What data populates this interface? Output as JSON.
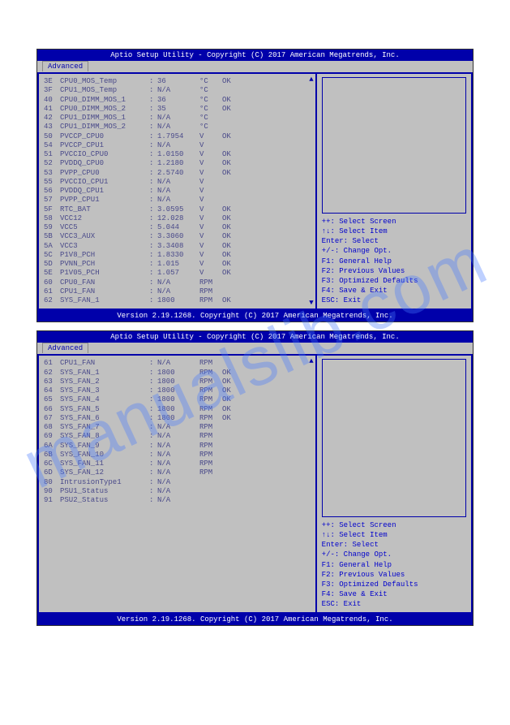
{
  "watermark": "manualslib.com",
  "title_bar": "Aptio Setup Utility - Copyright (C) 2017 American Megatrends, Inc.",
  "tab_label": "Advanced",
  "footer_bar": "Version 2.19.1268. Copyright (C) 2017 American Megatrends, Inc.",
  "help": {
    "l1": "++: Select Screen",
    "l2": "↑↓: Select Item",
    "l3": "Enter: Select",
    "l4": "+/-: Change Opt.",
    "l5": "F1: General Help",
    "l6": "F2: Previous Values",
    "l7": "F3: Optimized Defaults",
    "l8": "F4: Save & Exit",
    "l9": "ESC: Exit"
  },
  "panel1_rows": [
    {
      "id": "3E",
      "name": "CPU0_MOS_Temp",
      "val": "36",
      "unit": "°C",
      "stat": "OK"
    },
    {
      "id": "3F",
      "name": "CPU1_MOS_Temp",
      "val": "N/A",
      "unit": "°C",
      "stat": ""
    },
    {
      "id": "40",
      "name": "CPU0_DIMM_MOS_1",
      "val": "36",
      "unit": "°C",
      "stat": "OK"
    },
    {
      "id": "41",
      "name": "CPU0_DIMM_MOS_2",
      "val": "35",
      "unit": "°C",
      "stat": "OK"
    },
    {
      "id": "42",
      "name": "CPU1_DIMM_MOS_1",
      "val": "N/A",
      "unit": "°C",
      "stat": ""
    },
    {
      "id": "43",
      "name": "CPU1_DIMM_MOS_2",
      "val": "N/A",
      "unit": "°C",
      "stat": ""
    },
    {
      "id": "50",
      "name": "PVCCP_CPU0",
      "val": "1.7954",
      "unit": "V",
      "stat": "OK"
    },
    {
      "id": "54",
      "name": "PVCCP_CPU1",
      "val": "N/A",
      "unit": "V",
      "stat": ""
    },
    {
      "id": "51",
      "name": "PVCCIO_CPU0",
      "val": "1.0150",
      "unit": "V",
      "stat": "OK"
    },
    {
      "id": "52",
      "name": "PVDDQ_CPU0",
      "val": "1.2180",
      "unit": "V",
      "stat": "OK"
    },
    {
      "id": "53",
      "name": "PVPP_CPU0",
      "val": "2.5740",
      "unit": "V",
      "stat": "OK"
    },
    {
      "id": "55",
      "name": "PVCCIO_CPU1",
      "val": "N/A",
      "unit": "V",
      "stat": ""
    },
    {
      "id": "56",
      "name": "PVDDQ_CPU1",
      "val": "N/A",
      "unit": "V",
      "stat": ""
    },
    {
      "id": "57",
      "name": "PVPP_CPU1",
      "val": "N/A",
      "unit": "V",
      "stat": ""
    },
    {
      "id": "5F",
      "name": "RTC_BAT",
      "val": "3.0595",
      "unit": "V",
      "stat": "OK"
    },
    {
      "id": "58",
      "name": "VCC12",
      "val": "12.028",
      "unit": "V",
      "stat": "OK"
    },
    {
      "id": "59",
      "name": "VCC5",
      "val": "5.044",
      "unit": "V",
      "stat": "OK"
    },
    {
      "id": "5B",
      "name": "VCC3_AUX",
      "val": "3.3060",
      "unit": "V",
      "stat": "OK"
    },
    {
      "id": "5A",
      "name": "VCC3",
      "val": "3.3408",
      "unit": "V",
      "stat": "OK"
    },
    {
      "id": "5C",
      "name": "P1V8_PCH",
      "val": "1.8330",
      "unit": "V",
      "stat": "OK"
    },
    {
      "id": "5D",
      "name": "PVNN_PCH",
      "val": "1.015",
      "unit": "V",
      "stat": "OK"
    },
    {
      "id": "5E",
      "name": "P1V05_PCH",
      "val": "1.057",
      "unit": "V",
      "stat": "OK"
    },
    {
      "id": "60",
      "name": "CPU0_FAN",
      "val": "N/A",
      "unit": "RPM",
      "stat": ""
    },
    {
      "id": "61",
      "name": "CPU1_FAN",
      "val": "N/A",
      "unit": "RPM",
      "stat": ""
    },
    {
      "id": "62",
      "name": "SYS_FAN_1",
      "val": "1800",
      "unit": "RPM",
      "stat": "OK"
    }
  ],
  "panel2_rows": [
    {
      "id": "61",
      "name": "CPU1_FAN",
      "val": "N/A",
      "unit": "RPM",
      "stat": ""
    },
    {
      "id": "62",
      "name": "SYS_FAN_1",
      "val": "1800",
      "unit": "RPM",
      "stat": "OK"
    },
    {
      "id": "63",
      "name": "SYS_FAN_2",
      "val": "1800",
      "unit": "RPM",
      "stat": "OK"
    },
    {
      "id": "64",
      "name": "SYS_FAN_3",
      "val": "1800",
      "unit": "RPM",
      "stat": "OK"
    },
    {
      "id": "65",
      "name": "SYS_FAN_4",
      "val": "1800",
      "unit": "RPM",
      "stat": "OK"
    },
    {
      "id": "66",
      "name": "SYS_FAN_5",
      "val": "1800",
      "unit": "RPM",
      "stat": "OK"
    },
    {
      "id": "67",
      "name": "SYS_FAN_6",
      "val": "1800",
      "unit": "RPM",
      "stat": "OK"
    },
    {
      "id": "68",
      "name": "SYS_FAN_7",
      "val": "N/A",
      "unit": "RPM",
      "stat": ""
    },
    {
      "id": "69",
      "name": "SYS_FAN_8",
      "val": "N/A",
      "unit": "RPM",
      "stat": ""
    },
    {
      "id": "6A",
      "name": "SYS_FAN_9",
      "val": "N/A",
      "unit": "RPM",
      "stat": ""
    },
    {
      "id": "6B",
      "name": "SYS_FAN_10",
      "val": "N/A",
      "unit": "RPM",
      "stat": ""
    },
    {
      "id": "6C",
      "name": "SYS_FAN_11",
      "val": "N/A",
      "unit": "RPM",
      "stat": ""
    },
    {
      "id": "6D",
      "name": "SYS_FAN_12",
      "val": "N/A",
      "unit": "RPM",
      "stat": ""
    },
    {
      "id": "80",
      "name": "IntrusionType1",
      "val": "N/A",
      "unit": "",
      "stat": ""
    },
    {
      "id": "90",
      "name": "PSU1_Status",
      "val": "N/A",
      "unit": "",
      "stat": ""
    },
    {
      "id": "91",
      "name": "PSU2_Status",
      "val": "N/A",
      "unit": "",
      "stat": ""
    }
  ],
  "colors": {
    "header_bg": "#0000aa",
    "header_fg": "#ffffff",
    "panel_bg": "#c0c0c0",
    "text_fg": "#4a4a8a",
    "help_fg": "#0000cc"
  }
}
